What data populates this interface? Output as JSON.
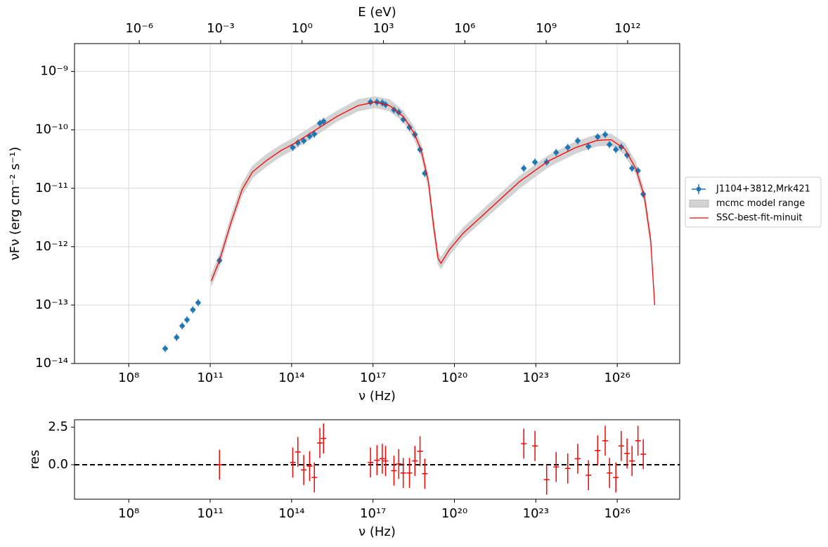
{
  "chart_data": [
    {
      "type": "scatter",
      "xlabel": "ν  (Hz)",
      "ylabel": "νFν  (erg cm⁻²  s⁻¹)",
      "x2label": "E (eV)",
      "xlog": true,
      "ylog": true,
      "grid": true,
      "legend": "outside right",
      "xlim": [
        1000000.0,
        2e+28
      ],
      "ylim": [
        1e-14,
        3e-09
      ],
      "x2lim": [
        4.1e-09,
        83000000000000.0
      ],
      "xticks": [
        {
          "value": 100000000.0,
          "label": "10⁸"
        },
        {
          "value": 100000000000.0,
          "label": "10¹¹"
        },
        {
          "value": 100000000000000.0,
          "label": "10¹⁴"
        },
        {
          "value": 1e+17,
          "label": "10¹⁷"
        },
        {
          "value": 1e+20,
          "label": "10²⁰"
        },
        {
          "value": 1e+23,
          "label": "10²³"
        },
        {
          "value": 1e+26,
          "label": "10²⁶"
        }
      ],
      "yticks": [
        {
          "value": 1e-14,
          "label": "10⁻¹⁴"
        },
        {
          "value": 1e-13,
          "label": "10⁻¹³"
        },
        {
          "value": 1e-12,
          "label": "10⁻¹²"
        },
        {
          "value": 1e-11,
          "label": "10⁻¹¹"
        },
        {
          "value": 1e-10,
          "label": "10⁻¹⁰"
        },
        {
          "value": 1e-09,
          "label": "10⁻⁹"
        }
      ],
      "x2ticks": [
        {
          "value": 1e-06,
          "label": "10⁻⁶"
        },
        {
          "value": 0.001,
          "label": "10⁻³"
        },
        {
          "value": 1,
          "label": "10⁰"
        },
        {
          "value": 1000.0,
          "label": "10³"
        },
        {
          "value": 1000000.0,
          "label": "10⁶"
        },
        {
          "value": 1000000000.0,
          "label": "10⁹"
        },
        {
          "value": 1000000000000.0,
          "label": "10¹²"
        }
      ],
      "series": [
        {
          "name": "J1104+3812,Mrk421",
          "color": "#1f77b4",
          "style": "errorbar",
          "x": [
            2200000000.0,
            5800000000.0,
            9300000000.0,
            14000000000.0,
            23000000000.0,
            36000000000.0,
            220000000000.0,
            110000000000000.0,
            170000000000000.0,
            280000000000000.0,
            460000000000000.0,
            690000000000000.0,
            1100000000000000.0,
            1500000000000000.0,
            8.1e+16,
            1.4e+17,
            2.2e+17,
            2.9e+17,
            5.9e+17,
            8.9e+17,
            1.3e+18,
            2.2e+18,
            3.5e+18,
            5.4e+18,
            8.1e+18,
            3.6e+22,
            9.3e+22,
            2.5e+23,
            5.6e+23,
            1.5e+24,
            3.5e+24,
            8.7e+24,
            1.9e+25,
            3.6e+25,
            5.2e+25,
            8.9e+25,
            1.4e+26,
            2.3e+26,
            3.5e+26,
            5.8e+26,
            9.1e+26
          ],
          "values": [
            1.8e-14,
            2.8e-14,
            4.4e-14,
            5.6e-14,
            8.3e-14,
            1.1e-13,
            5.8e-13,
            5e-11,
            6e-11,
            6.5e-11,
            7.8e-11,
            8.5e-11,
            1.3e-10,
            1.4e-10,
            3e-10,
            3e-10,
            2.9e-10,
            2.7e-10,
            2.2e-10,
            2e-10,
            1.5e-10,
            1.1e-10,
            8.3e-11,
            4.6e-11,
            1.8e-11,
            2.2e-11,
            2.8e-11,
            2.8e-11,
            4.1e-11,
            5e-11,
            6.5e-11,
            5.2e-11,
            7.6e-11,
            8.3e-11,
            5.6e-11,
            4.6e-11,
            5.1e-11,
            3.7e-11,
            2.2e-11,
            2e-11,
            7.9e-12
          ]
        },
        {
          "name": "mcmc model range",
          "color": "#d3d3d3",
          "style": "band",
          "x": [
            110000000000.0,
            220000000000.0,
            600000000000.0,
            1500000000000.0,
            3600000000000.0,
            12000000000000.0,
            40000000000000.0,
            130000000000000.0,
            780000000000000.0,
            4700000000000000.0,
            2.8e+16,
            1.2e+17,
            4.1e+17,
            1.3e+18,
            3.3e+18,
            6e+18,
            1.1e+19,
            1.7e+19,
            2.5e+19,
            3.2e+19,
            6.5e+19,
            2.1e+20,
            2.3e+21,
            2.5e+22,
            2.8e+23,
            3e+24,
            1.8e+25,
            5.9e+25,
            1.9e+26,
            4.8e+26,
            1e+27,
            1.7e+27
          ],
          "upper": [
            3.3e-13,
            7.3e-13,
            3.4e-12,
            1.2e-11,
            2.4e-11,
            3.8e-11,
            5.5e-11,
            7.4e-11,
            1.25e-10,
            2.1e-10,
            3.3e-10,
            3.7e-10,
            3.3e-10,
            2.1e-10,
            1.1e-10,
            5.5e-11,
            1.6e-11,
            2.9e-12,
            7.9e-13,
            6.5e-13,
            1.1e-12,
            2.1e-12,
            5.9e-12,
            1.6e-11,
            3.6e-11,
            6.3e-11,
            8.3e-11,
            8.5e-11,
            5.9e-11,
            2.8e-11,
            9e-12,
            1.6e-12
          ],
          "lower": [
            2.1e-13,
            4.6e-13,
            2.2e-12,
            7.6e-12,
            1.5e-11,
            2.4e-11,
            3.5e-11,
            4.7e-11,
            8e-11,
            1.4e-10,
            2.1e-10,
            2.4e-10,
            2.1e-10,
            1.4e-10,
            7e-11,
            3.5e-11,
            1e-11,
            1.8e-12,
            5e-13,
            4.2e-13,
            7.1e-13,
            1.4e-12,
            3.8e-12,
            1e-11,
            2.3e-11,
            4e-11,
            5.3e-11,
            5.4e-11,
            3.8e-11,
            1.8e-11,
            5.8e-12,
            1e-12
          ]
        },
        {
          "name": "SSC-best-fit-minuit",
          "color": "#ff0000",
          "style": "line",
          "x": [
            110000000000.0,
            220000000000.0,
            600000000000.0,
            1500000000000.0,
            3600000000000.0,
            12000000000000.0,
            40000000000000.0,
            130000000000000.0,
            780000000000000.0,
            4700000000000000.0,
            2.8e+16,
            1.2e+17,
            4.1e+17,
            1.3e+18,
            3.3e+18,
            6e+18,
            1.1e+19,
            1.7e+19,
            2.5e+19,
            3.2e+19,
            6.5e+19,
            2.1e+20,
            2.3e+21,
            2.5e+22,
            2.8e+23,
            3e+24,
            1.8e+25,
            5.9e+25,
            1.9e+26,
            4.8e+26,
            1e+27,
            1.7e+27,
            2.4e+27
          ],
          "values": [
            2.6e-13,
            5.8e-13,
            2.7e-12,
            9.5e-12,
            1.9e-11,
            3e-11,
            4.4e-11,
            5.9e-11,
            1e-10,
            1.7e-10,
            2.6e-10,
            3e-10,
            2.6e-10,
            1.7e-10,
            8.7e-11,
            4.4e-11,
            1.3e-11,
            2.3e-12,
            6.3e-13,
            5.2e-13,
            8.9e-13,
            1.7e-12,
            4.7e-12,
            1.3e-11,
            2.9e-11,
            5e-11,
            6.6e-11,
            6.8e-11,
            4.7e-11,
            2.2e-11,
            7.2e-12,
            1.3e-12,
            1e-13
          ]
        }
      ]
    },
    {
      "type": "scatter",
      "xlabel": "ν  (Hz)",
      "ylabel": "res",
      "xlog": true,
      "ylog": false,
      "grid": false,
      "hline": 0,
      "xlim": [
        1000000.0,
        2e+28
      ],
      "ylim": [
        -2.3,
        3.0
      ],
      "xticks": [
        {
          "value": 100000000.0,
          "label": "10⁸"
        },
        {
          "value": 100000000000.0,
          "label": "10¹¹"
        },
        {
          "value": 100000000000000.0,
          "label": "10¹⁴"
        },
        {
          "value": 1e+17,
          "label": "10¹⁷"
        },
        {
          "value": 1e+20,
          "label": "10²⁰"
        },
        {
          "value": 1e+23,
          "label": "10²³"
        },
        {
          "value": 1e+26,
          "label": "10²⁶"
        }
      ],
      "yticks": [
        {
          "value": 0,
          "label": "0.0"
        },
        {
          "value": 2.5,
          "label": "2.5"
        }
      ],
      "series": [
        {
          "color": "#ff0000",
          "style": "errorbar",
          "x": [
            220000000000.0,
            110000000000000.0,
            170000000000000.0,
            280000000000000.0,
            460000000000000.0,
            690000000000000.0,
            1100000000000000.0,
            1500000000000000.0,
            8.1e+16,
            1.4e+17,
            2.2e+17,
            2.9e+17,
            5.9e+17,
            8.9e+17,
            1.3e+18,
            2.2e+18,
            3.5e+18,
            5.4e+18,
            8.1e+18,
            3.6e+22,
            9.3e+22,
            2.5e+23,
            5.6e+23,
            1.5e+24,
            3.5e+24,
            8.7e+24,
            1.9e+25,
            3.6e+25,
            5.2e+25,
            8.9e+25,
            1.4e+26,
            2.3e+26,
            3.5e+26,
            5.8e+26,
            9.1e+26
          ],
          "values": [
            0.0,
            0.15,
            0.85,
            -0.35,
            -0.1,
            -0.85,
            1.45,
            1.75,
            0.15,
            0.3,
            0.4,
            0.25,
            -0.4,
            0.05,
            -0.55,
            -0.55,
            0.25,
            0.9,
            -0.6,
            1.4,
            1.25,
            -1.0,
            -0.15,
            -0.25,
            0.4,
            -0.7,
            0.95,
            1.6,
            -0.55,
            -0.85,
            1.25,
            0.75,
            0.25,
            1.6,
            0.7
          ],
          "yerr": [
            1,
            1,
            1,
            1,
            1,
            1,
            1,
            1,
            1,
            1,
            1,
            1,
            1,
            1,
            1,
            1,
            1,
            1,
            1,
            1,
            1,
            1,
            1,
            1,
            1,
            1,
            1,
            1,
            1,
            1,
            1,
            1,
            1,
            1,
            1
          ]
        }
      ]
    }
  ]
}
